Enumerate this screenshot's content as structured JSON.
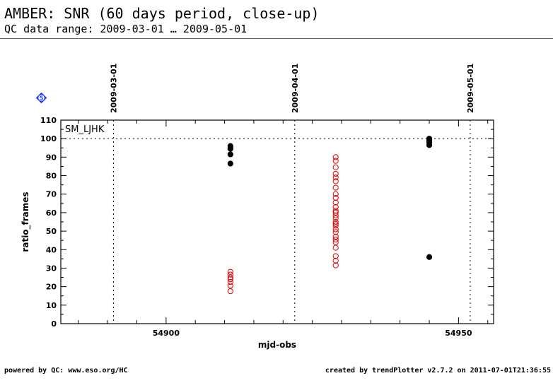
{
  "header": {
    "title": "AMBER: SNR (60 days period, close-up)",
    "subtitle": "QC data range: 2009-03-01 … 2009-05-01"
  },
  "footer": {
    "left": "powered by QC: www.eso.org/HC",
    "right": "created by trendPlotter v2.7.2 on 2011-07-01T21:36:55"
  },
  "badge": {
    "label": "5",
    "color": "#1a3cff",
    "icon": "diamond-icon"
  },
  "colors": {
    "series_black": "#000000",
    "series_red": "#e00000",
    "reference_line": "#000000"
  },
  "chart_data": {
    "type": "scatter",
    "xlabel": "mjd-obs",
    "ylabel": "ratio_frames",
    "xlim": [
      54882,
      54956
    ],
    "ylim": [
      0,
      110
    ],
    "x_ticks": [
      54900,
      54950
    ],
    "y_ticks": [
      0,
      10,
      20,
      30,
      40,
      50,
      60,
      70,
      80,
      90,
      100,
      110
    ],
    "annotation": "SM_LJHK",
    "reference_line_y": 100,
    "date_markers": [
      {
        "label": "2009-03-01",
        "x": 54891
      },
      {
        "label": "2009-04-01",
        "x": 54922
      },
      {
        "label": "2009-05-01",
        "x": 54952
      }
    ],
    "grid": false,
    "series": [
      {
        "marker": "filled-circle",
        "color": "#000000",
        "points": [
          [
            54911,
            96
          ],
          [
            54911,
            95
          ],
          [
            54911,
            94.5
          ],
          [
            54911,
            91.5
          ],
          [
            54911,
            86.5
          ],
          [
            54945,
            100
          ],
          [
            54945,
            99
          ],
          [
            54945,
            98
          ],
          [
            54945,
            96.5
          ],
          [
            54945,
            36
          ]
        ]
      },
      {
        "marker": "open-circle",
        "color": "#e00000",
        "points": [
          [
            54911,
            28
          ],
          [
            54911,
            26.5
          ],
          [
            54911,
            25
          ],
          [
            54911,
            24
          ],
          [
            54911,
            22.5
          ],
          [
            54911,
            20.5
          ],
          [
            54911,
            17.5
          ],
          [
            54929,
            90
          ],
          [
            54929,
            88
          ],
          [
            54929,
            84.5
          ],
          [
            54929,
            81
          ],
          [
            54929,
            79
          ],
          [
            54929,
            77
          ],
          [
            54929,
            73.5
          ],
          [
            54929,
            70
          ],
          [
            54929,
            68
          ],
          [
            54929,
            65.5
          ],
          [
            54929,
            63
          ],
          [
            54929,
            61
          ],
          [
            54929,
            60
          ],
          [
            54929,
            58.5
          ],
          [
            54929,
            57
          ],
          [
            54929,
            55
          ],
          [
            54929,
            54
          ],
          [
            54929,
            53
          ],
          [
            54929,
            51
          ],
          [
            54929,
            49.5
          ],
          [
            54929,
            47
          ],
          [
            54929,
            45.5
          ],
          [
            54929,
            44
          ],
          [
            54929,
            41
          ],
          [
            54929,
            36.5
          ],
          [
            54929,
            34
          ],
          [
            54929,
            31.5
          ]
        ]
      }
    ]
  }
}
